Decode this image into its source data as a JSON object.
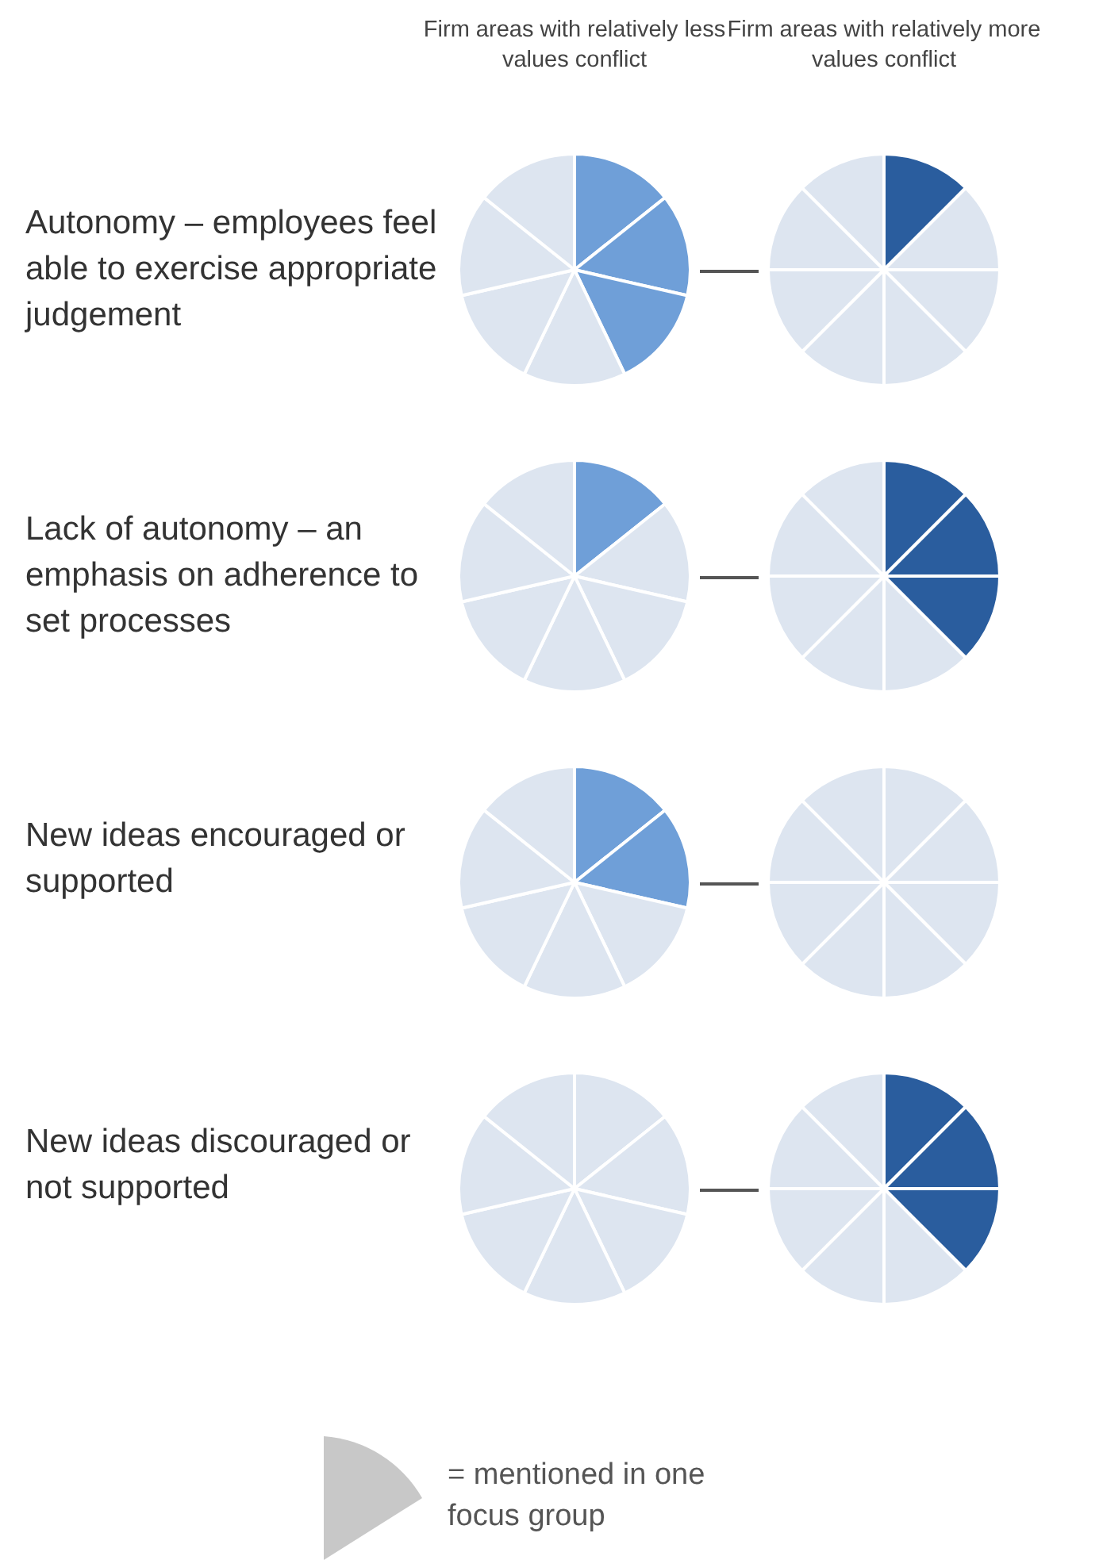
{
  "chart_data": [
    {
      "type": "pie",
      "title": "Autonomy – employees feel able to exercise appropriate judgement",
      "subtitle": "Firm areas with relatively less values conflict",
      "categories": [
        null,
        null,
        null,
        null,
        null,
        null,
        null
      ],
      "values": [
        14.29,
        14.29,
        14.28,
        14.29,
        14.28,
        14.29,
        14.28
      ],
      "colors": [
        "#6f9fd8",
        "#6f9fd8",
        "#6f9fd8",
        "#dde5f0",
        "#dde5f0",
        "#dde5f0",
        "#dde5f0"
      ]
    },
    {
      "type": "pie",
      "subtitle": "Firm areas with relatively more values conflict",
      "categories": [
        null,
        null,
        null,
        null,
        null,
        null,
        null,
        null
      ],
      "values": [
        12.5,
        12.5,
        12.5,
        12.5,
        12.5,
        12.5,
        12.5,
        12.5
      ],
      "colors": [
        "#2a5d9e",
        "#dde5f0",
        "#dde5f0",
        "#dde5f0",
        "#dde5f0",
        "#dde5f0",
        "#dde5f0",
        "#dde5f0"
      ]
    },
    {
      "type": "pie",
      "title": "Lack of autonomy – an emphasis on adherence to set processes",
      "categories": [
        null,
        null,
        null,
        null,
        null,
        null,
        null
      ],
      "values": [
        14.29,
        14.29,
        14.28,
        14.29,
        14.28,
        14.29,
        14.28
      ],
      "colors": [
        "#6f9fd8",
        "#dde5f0",
        "#dde5f0",
        "#dde5f0",
        "#dde5f0",
        "#dde5f0",
        "#dde5f0"
      ]
    },
    {
      "type": "pie",
      "categories": [
        null,
        null,
        null,
        null,
        null,
        null,
        null,
        null
      ],
      "values": [
        12.5,
        12.5,
        12.5,
        12.5,
        12.5,
        12.5,
        12.5,
        12.5
      ],
      "colors": [
        "#2a5d9e",
        "#2a5d9e",
        "#2a5d9e",
        "#dde5f0",
        "#dde5f0",
        "#dde5f0",
        "#dde5f0",
        "#dde5f0"
      ]
    },
    {
      "type": "pie",
      "title": "New ideas encouraged or supported",
      "categories": [
        null,
        null,
        null,
        null,
        null,
        null,
        null
      ],
      "values": [
        14.29,
        14.29,
        14.28,
        14.29,
        14.28,
        14.29,
        14.28
      ],
      "colors": [
        "#6f9fd8",
        "#6f9fd8",
        "#dde5f0",
        "#dde5f0",
        "#dde5f0",
        "#dde5f0",
        "#dde5f0"
      ]
    },
    {
      "type": "pie",
      "categories": [
        null,
        null,
        null,
        null,
        null,
        null,
        null,
        null
      ],
      "values": [
        12.5,
        12.5,
        12.5,
        12.5,
        12.5,
        12.5,
        12.5,
        12.5
      ],
      "colors": [
        "#dde5f0",
        "#dde5f0",
        "#dde5f0",
        "#dde5f0",
        "#dde5f0",
        "#dde5f0",
        "#dde5f0",
        "#dde5f0"
      ]
    },
    {
      "type": "pie",
      "title": "New ideas discouraged or not supported",
      "categories": [
        null,
        null,
        null,
        null,
        null,
        null,
        null
      ],
      "values": [
        14.29,
        14.29,
        14.28,
        14.29,
        14.28,
        14.29,
        14.28
      ],
      "colors": [
        "#dde5f0",
        "#dde5f0",
        "#dde5f0",
        "#dde5f0",
        "#dde5f0",
        "#dde5f0",
        "#dde5f0"
      ]
    },
    {
      "type": "pie",
      "categories": [
        null,
        null,
        null,
        null,
        null,
        null,
        null,
        null
      ],
      "values": [
        12.5,
        12.5,
        12.5,
        12.5,
        12.5,
        12.5,
        12.5,
        12.5
      ],
      "colors": [
        "#2a5d9e",
        "#2a5d9e",
        "#2a5d9e",
        "#dde5f0",
        "#dde5f0",
        "#dde5f0",
        "#dde5f0",
        "#dde5f0"
      ],
      "annotations": [
        "= mentioned in one focus group"
      ]
    }
  ]
}
